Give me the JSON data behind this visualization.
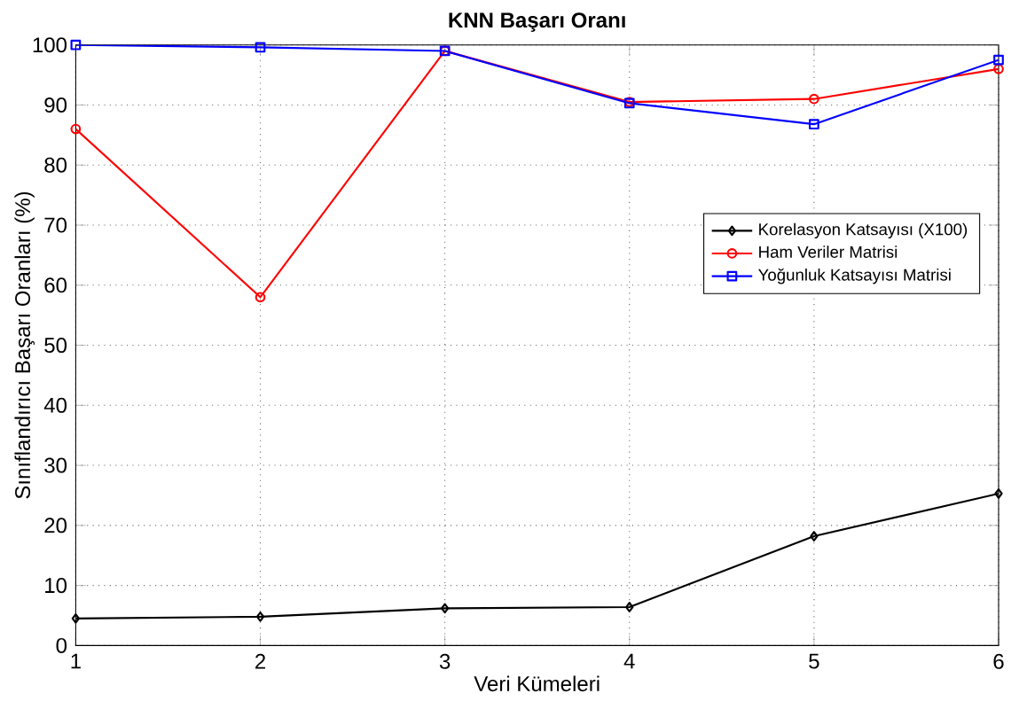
{
  "chart_data": {
    "type": "line",
    "title": "KNN Başarı Oranı",
    "xlabel": "Veri Kümeleri",
    "ylabel": "Sınıflandırıcı Başarı Oranları (%)",
    "x": [
      1,
      2,
      3,
      4,
      5,
      6
    ],
    "series": [
      {
        "name": "Korelasyon Katsayısı (X100)",
        "color": "#000000",
        "marker": "diamond",
        "values": [
          4.5,
          4.8,
          6.2,
          6.4,
          18.2,
          25.3
        ]
      },
      {
        "name": "Ham Veriler Matrisi",
        "color": "#ff0000",
        "marker": "circle",
        "values": [
          86,
          58,
          99,
          90.5,
          91,
          96
        ]
      },
      {
        "name": "Yoğunluk Katsayısı Matrisi",
        "color": "#0000ff",
        "marker": "square",
        "values": [
          100,
          99.6,
          99,
          90.3,
          86.8,
          97.5
        ]
      }
    ],
    "xlim": [
      1,
      6
    ],
    "xticks": [
      1,
      2,
      3,
      4,
      5,
      6
    ],
    "ylim": [
      0,
      100
    ],
    "yticks": [
      0,
      10,
      20,
      30,
      40,
      50,
      60,
      70,
      80,
      90,
      100
    ],
    "grid": true,
    "legend": "right",
    "line_style": "solid"
  }
}
